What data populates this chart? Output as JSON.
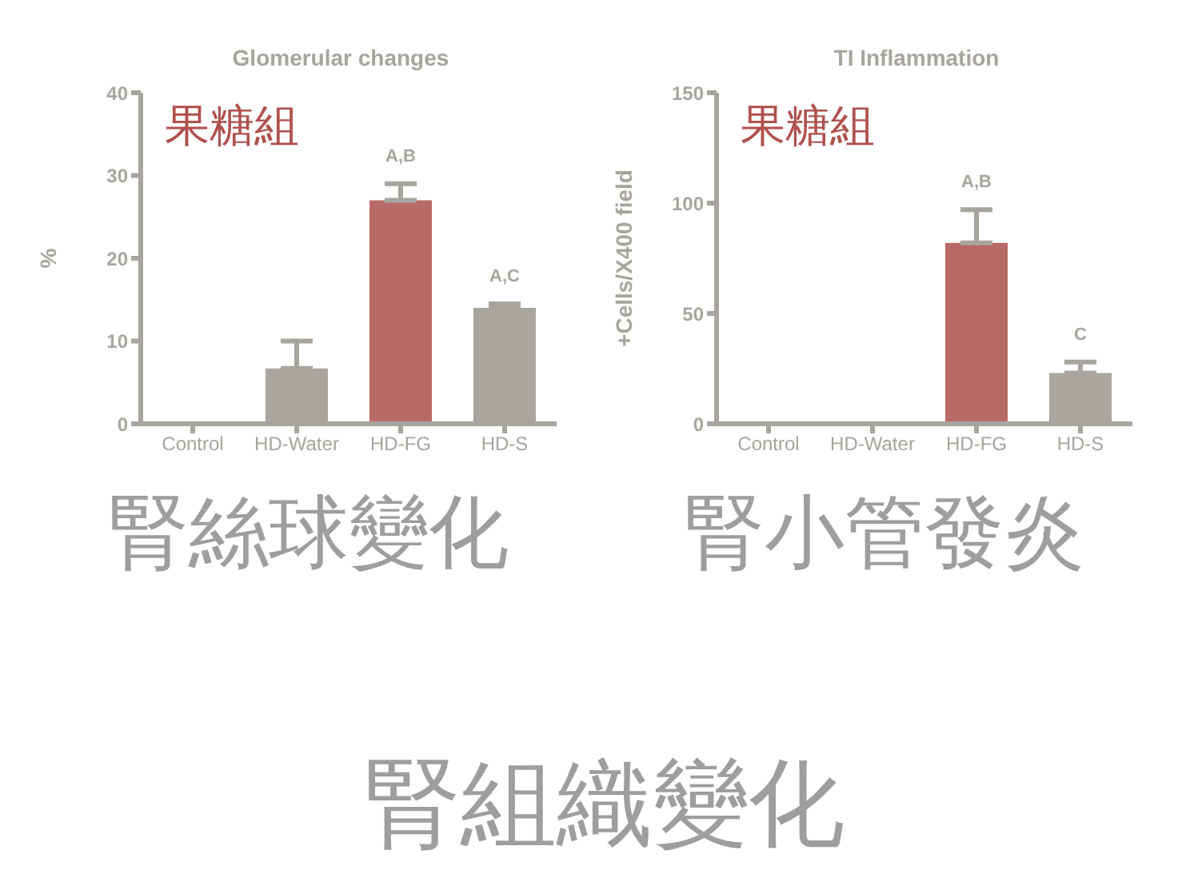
{
  "chart_data": [
    {
      "type": "bar",
      "title": "Glomerular changes",
      "ylabel": "%",
      "categories": [
        "Control",
        "HD-Water",
        "HD-FG",
        "HD-S"
      ],
      "values": [
        0,
        6.7,
        27,
        14
      ],
      "errors": [
        null,
        [
          6.7,
          10
        ],
        [
          27,
          29
        ],
        [
          14,
          14.5
        ]
      ],
      "colors": [
        "#a9a69f",
        "#a9a69f",
        "#b76a66",
        "#a9a69f"
      ],
      "ylim": [
        0,
        40
      ],
      "yticks": [
        0,
        10,
        20,
        30,
        40
      ],
      "grid": false,
      "legend": false,
      "annotations": [
        "果糖組",
        "腎絲球變化",
        "腎組織變化",
        {
          "text": "A,B",
          "x": "HD-FG",
          "y": 29
        },
        {
          "text": "A,C",
          "x": "HD-S",
          "y": 14.5
        }
      ]
    },
    {
      "type": "bar",
      "title": "TI Inflammation",
      "ylabel": "+Cells/X400 field",
      "categories": [
        "Control",
        "HD-Water",
        "HD-FG",
        "HD-S"
      ],
      "values": [
        0,
        0,
        82,
        23
      ],
      "errors": [
        null,
        null,
        [
          82,
          97
        ],
        [
          23,
          28
        ]
      ],
      "colors": [
        "#a9a69f",
        "#a9a69f",
        "#b76a66",
        "#a9a69f"
      ],
      "ylim": [
        0,
        150
      ],
      "yticks": [
        0,
        50,
        100,
        150
      ],
      "grid": false,
      "legend": false,
      "annotations": [
        "果糖組",
        "腎小管發炎",
        {
          "text": "A,B",
          "x": "HD-FG",
          "y": 97
        },
        {
          "text": "C",
          "x": "HD-S",
          "y": 28
        }
      ]
    }
  ]
}
